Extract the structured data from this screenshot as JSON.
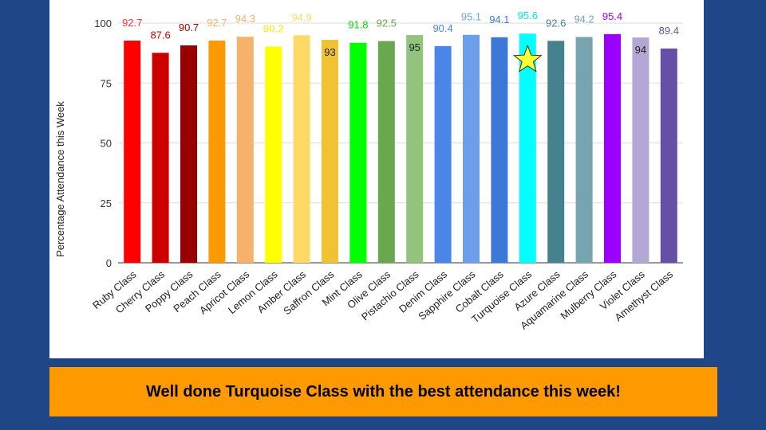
{
  "banner": {
    "text": "Well done Turquoise Class with the best attendance this week!",
    "background": "#ff9900"
  },
  "chart_data": {
    "type": "bar",
    "ylabel": "Percentage Attendance this Week",
    "xlabel": "",
    "title": "",
    "ylim": [
      0,
      100
    ],
    "yticks": [
      0,
      25,
      50,
      75,
      100
    ],
    "grid": true,
    "legend": "none",
    "highlight": {
      "category": "Turquoise Class",
      "marker": "star-icon",
      "color": "#ffff33"
    },
    "categories": [
      "Ruby Class",
      "Cherry Class",
      "Poppy Class",
      "Peach Class",
      "Apricot Class",
      "Lemon Class",
      "Amber Class",
      "Saffron Class",
      "Mint Class",
      "Olive Class",
      "Pistachio Class",
      "Denim Class",
      "Sapphire Class",
      "Cobalt Class",
      "Turquoise Class",
      "Azure Class",
      "Aquamarine Class",
      "Mulberry Class",
      "Violet Class",
      "Amethyst Class"
    ],
    "values": [
      92.7,
      87.6,
      90.7,
      92.7,
      94.3,
      90.2,
      94.9,
      93,
      91.8,
      92.5,
      95,
      90.4,
      95.1,
      94.1,
      95.6,
      92.6,
      94.2,
      95.4,
      94,
      89.4
    ],
    "value_labels": [
      "92.7",
      "87.6",
      "90.7",
      "92.7",
      "94.3",
      "90.2",
      "94.9",
      "93",
      "91.8",
      "92.5",
      "95",
      "90.4",
      "95.1",
      "94.1",
      "95.6",
      "92.6",
      "94.2",
      "95.4",
      "94",
      "89.4"
    ],
    "colors": [
      "#ff0000",
      "#cc0000",
      "#990000",
      "#ff9900",
      "#f6b26b",
      "#ffff00",
      "#ffd966",
      "#f1c232",
      "#00ff00",
      "#6aa84f",
      "#93c47d",
      "#4a86e8",
      "#6d9eeb",
      "#3c78d8",
      "#00ffff",
      "#45818e",
      "#76a5af",
      "#9900ff",
      "#b4a7d6",
      "#674ea7"
    ],
    "label_colors": [
      "#ff3333",
      "#cc0000",
      "#990000",
      "#f6b26b",
      "#f6b26b",
      "#eeee00",
      "#ffd966",
      "#222222",
      "#00dd00",
      "#6aa84f",
      "#222222",
      "#4a86e8",
      "#6d9eeb",
      "#3c78d8",
      "#00e5e5",
      "#45818e",
      "#76a5af",
      "#9900ff",
      "#222222",
      "#674ea7"
    ],
    "label_inside": [
      false,
      false,
      false,
      false,
      false,
      false,
      false,
      true,
      false,
      false,
      true,
      false,
      false,
      false,
      false,
      false,
      false,
      false,
      true,
      false
    ]
  }
}
